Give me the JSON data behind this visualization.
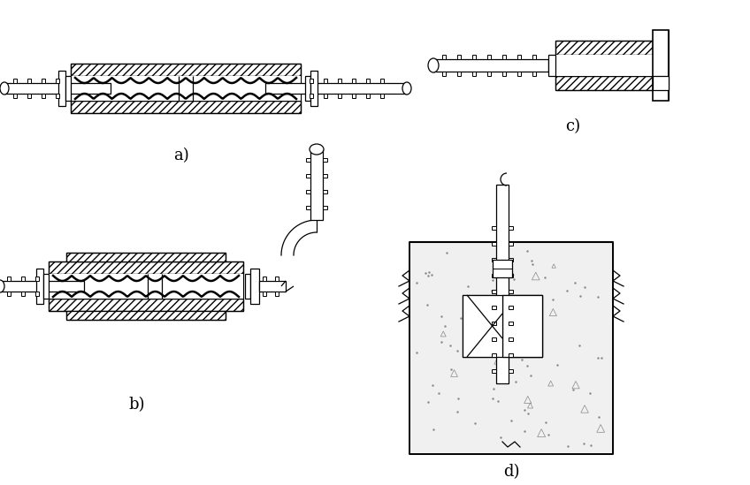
{
  "bg_color": "#ffffff",
  "line_color": "#000000",
  "label_a": "a)",
  "label_b": "b)",
  "label_c": "c)",
  "label_d": "d)",
  "label_fontsize": 13
}
